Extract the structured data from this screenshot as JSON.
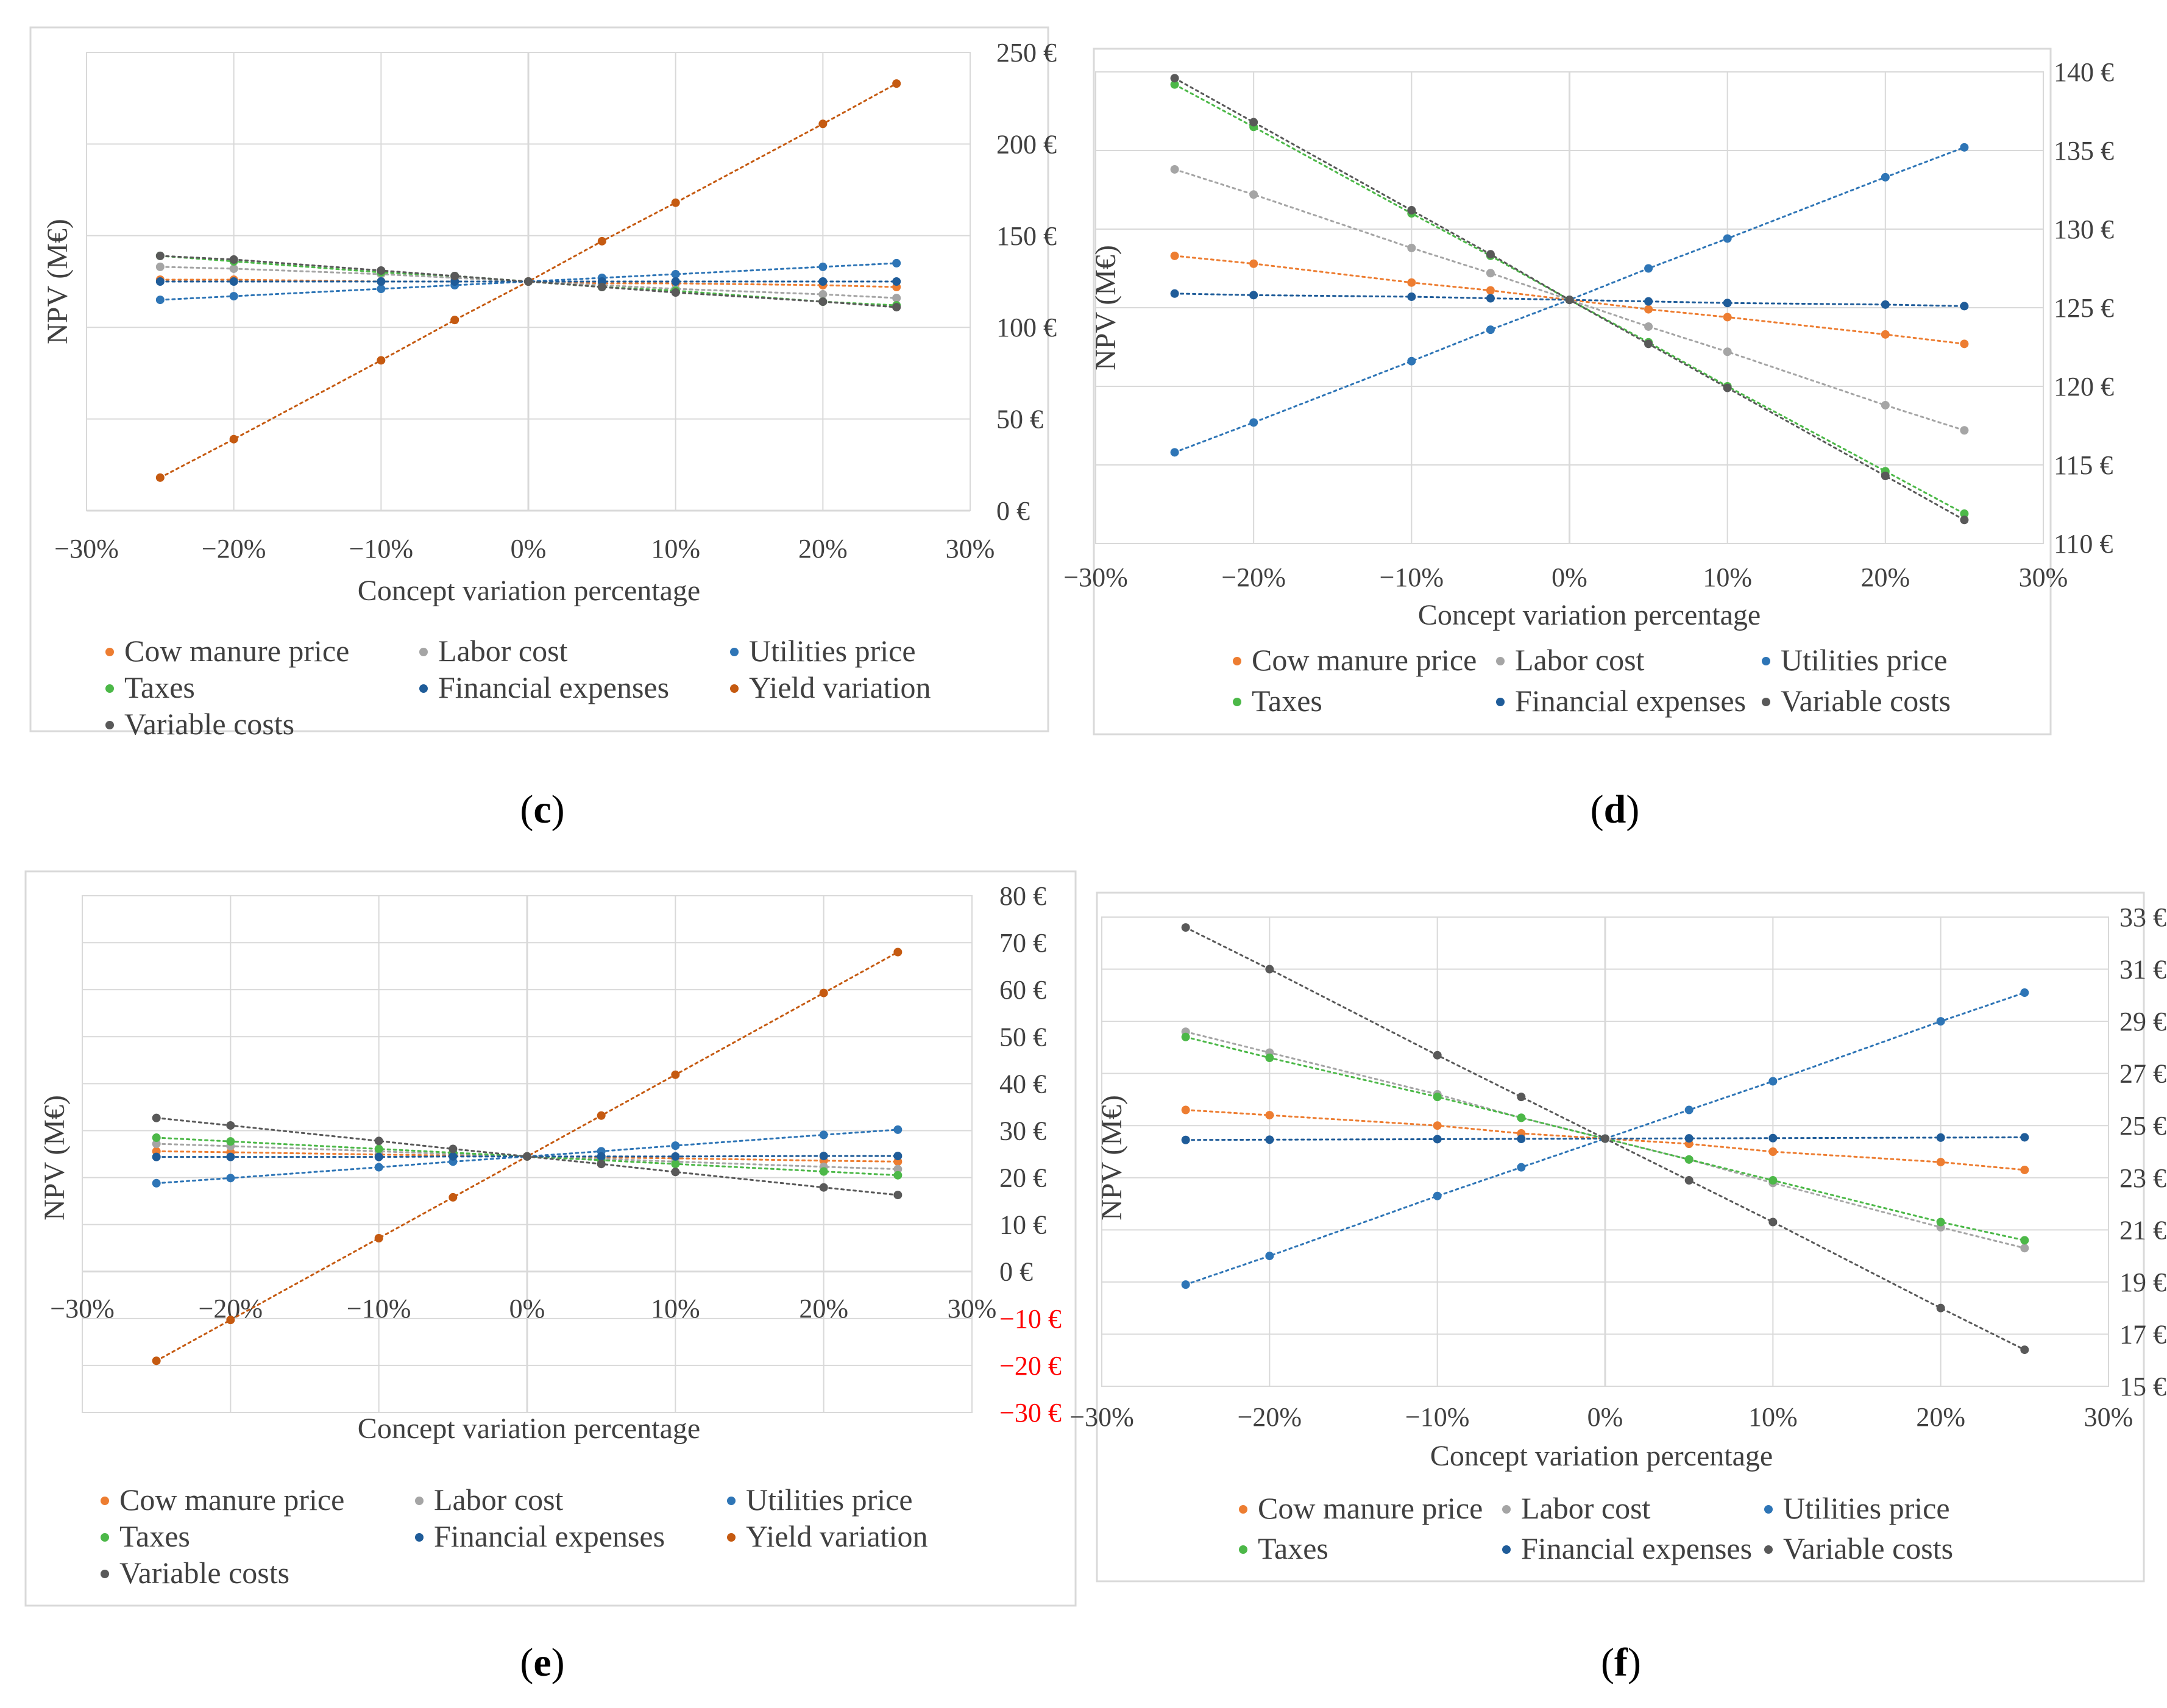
{
  "colors": {
    "cow_manure": "#ed7d31",
    "labor": "#a5a5a5",
    "utilities": "#2e75b6",
    "taxes": "#4cb848",
    "financial": "#1f5c99",
    "yield": "#c55a11",
    "variable": "#595959",
    "grid": "#d9d9d9",
    "frame": "#d9d9d9",
    "negative_label": "#ff0000"
  },
  "chart_data": [
    {
      "id": "c",
      "panel_label": "c",
      "type": "line",
      "ylabel": "NPV (M€)",
      "xlabel": "Concept variation percentage",
      "xlim": [
        -30,
        30
      ],
      "ylim": [
        0,
        250
      ],
      "x_ticks": [
        "−30%",
        "−20%",
        "−10%",
        "0%",
        "10%",
        "20%",
        "30%"
      ],
      "y_ticks": [
        "0 €",
        "50 €",
        "100 €",
        "150 €",
        "200 €",
        "250 €"
      ],
      "x": [
        -25,
        -20,
        -10,
        -5,
        0,
        5,
        10,
        20,
        25
      ],
      "series": [
        {
          "name": "Cow manure price",
          "color_key": "cow_manure",
          "values": [
            126,
            126,
            125,
            125,
            125,
            124,
            124,
            123,
            122
          ]
        },
        {
          "name": "Labor cost",
          "color_key": "labor",
          "values": [
            133,
            132,
            129,
            127,
            125,
            123,
            121,
            118,
            116
          ]
        },
        {
          "name": "Utilities price",
          "color_key": "utilities",
          "values": [
            115,
            117,
            121,
            123,
            125,
            127,
            129,
            133,
            135
          ]
        },
        {
          "name": "Taxes",
          "color_key": "taxes",
          "values": [
            139,
            136,
            130,
            128,
            125,
            122,
            120,
            114,
            112
          ]
        },
        {
          "name": "Financial expenses",
          "color_key": "financial",
          "values": [
            125,
            125,
            125,
            125,
            125,
            125,
            125,
            125,
            125
          ]
        },
        {
          "name": "Yield variation",
          "color_key": "yield",
          "values": [
            18,
            39,
            82,
            104,
            125,
            147,
            168,
            211,
            233
          ]
        },
        {
          "name": "Variable costs",
          "color_key": "variable",
          "values": [
            139,
            137,
            131,
            128,
            125,
            122,
            119,
            114,
            111
          ]
        }
      ]
    },
    {
      "id": "d",
      "panel_label": "d",
      "type": "line",
      "ylabel": "NPV (M€)",
      "xlabel": "Concept variation percentage",
      "xlim": [
        -30,
        30
      ],
      "ylim": [
        110,
        140
      ],
      "x_ticks": [
        "−30%",
        "−20%",
        "−10%",
        "0%",
        "10%",
        "20%",
        "30%"
      ],
      "y_ticks": [
        "110 €",
        "115 €",
        "120 €",
        "125 €",
        "130 €",
        "135 €",
        "140 €"
      ],
      "x": [
        -25,
        -20,
        -10,
        -5,
        0,
        5,
        10,
        20,
        25
      ],
      "series": [
        {
          "name": "Cow manure price",
          "color_key": "cow_manure",
          "values": [
            128.3,
            127.8,
            126.6,
            126.1,
            125.5,
            124.9,
            124.4,
            123.3,
            122.7
          ]
        },
        {
          "name": "Labor cost",
          "color_key": "labor",
          "values": [
            133.8,
            132.2,
            128.8,
            127.2,
            125.5,
            123.8,
            122.2,
            118.8,
            117.2
          ]
        },
        {
          "name": "Utilities price",
          "color_key": "utilities",
          "values": [
            115.8,
            117.7,
            121.6,
            123.6,
            125.5,
            127.5,
            129.4,
            133.3,
            135.2
          ]
        },
        {
          "name": "Taxes",
          "color_key": "taxes",
          "values": [
            139.2,
            136.5,
            131.0,
            128.3,
            125.5,
            122.8,
            120.0,
            114.6,
            111.9
          ]
        },
        {
          "name": "Financial expenses",
          "color_key": "financial",
          "values": [
            125.9,
            125.8,
            125.7,
            125.6,
            125.5,
            125.4,
            125.3,
            125.2,
            125.1
          ]
        },
        {
          "name": "Variable costs",
          "color_key": "variable",
          "values": [
            139.6,
            136.8,
            131.2,
            128.4,
            125.5,
            122.7,
            119.9,
            114.3,
            111.5
          ]
        }
      ]
    },
    {
      "id": "e",
      "panel_label": "e",
      "type": "line",
      "ylabel": "NPV (M€)",
      "xlabel": "Concept variation percentage",
      "xlim": [
        -30,
        30
      ],
      "ylim": [
        -30,
        80
      ],
      "x_ticks": [
        "−30%",
        "−20%",
        "−10%",
        "0%",
        "10%",
        "20%",
        "30%"
      ],
      "y_ticks": [
        "−30 €",
        "−20 €",
        "−10 €",
        "0 €",
        "10 €",
        "20 €",
        "30 €",
        "40 €",
        "50 €",
        "60 €",
        "70 €",
        "80 €"
      ],
      "x": [
        -25,
        -20,
        -10,
        -5,
        0,
        5,
        10,
        20,
        25
      ],
      "series": [
        {
          "name": "Cow manure price",
          "color_key": "cow_manure",
          "values": [
            25.6,
            25.4,
            24.9,
            24.7,
            24.5,
            24.3,
            24.1,
            23.6,
            23.4
          ]
        },
        {
          "name": "Labor cost",
          "color_key": "labor",
          "values": [
            27.2,
            26.7,
            25.6,
            25.0,
            24.5,
            24.0,
            23.4,
            22.3,
            21.8
          ]
        },
        {
          "name": "Utilities price",
          "color_key": "utilities",
          "values": [
            18.8,
            19.9,
            22.2,
            23.4,
            24.5,
            25.6,
            26.8,
            29.1,
            30.2
          ]
        },
        {
          "name": "Taxes",
          "color_key": "taxes",
          "values": [
            28.5,
            27.7,
            26.1,
            25.3,
            24.5,
            23.7,
            22.9,
            21.3,
            20.5
          ]
        },
        {
          "name": "Financial expenses",
          "color_key": "financial",
          "values": [
            24.4,
            24.4,
            24.4,
            24.5,
            24.5,
            24.5,
            24.5,
            24.6,
            24.6
          ]
        },
        {
          "name": "Yield variation",
          "color_key": "yield",
          "values": [
            -19,
            -10.3,
            7.1,
            15.8,
            24.5,
            33.2,
            41.9,
            59.3,
            68.0
          ]
        },
        {
          "name": "Variable costs",
          "color_key": "variable",
          "values": [
            32.7,
            31.1,
            27.8,
            26.1,
            24.5,
            22.9,
            21.2,
            17.9,
            16.3
          ]
        }
      ]
    },
    {
      "id": "f",
      "panel_label": "f",
      "type": "line",
      "ylabel": "NPV (M€)",
      "xlabel": "Concept variation percentage",
      "xlim": [
        -30,
        30
      ],
      "ylim": [
        15,
        33
      ],
      "x_ticks": [
        "−30%",
        "−20%",
        "−10%",
        "0%",
        "10%",
        "20%",
        "30%"
      ],
      "y_ticks": [
        "15 €",
        "17 €",
        "19 €",
        "21 €",
        "23 €",
        "25 €",
        "27 €",
        "29 €",
        "31 €",
        "33 €"
      ],
      "x": [
        -25,
        -20,
        -10,
        -5,
        0,
        5,
        10,
        20,
        25
      ],
      "series": [
        {
          "name": "Cow manure price",
          "color_key": "cow_manure",
          "values": [
            25.6,
            25.4,
            25.0,
            24.7,
            24.5,
            24.3,
            24.0,
            23.6,
            23.3
          ]
        },
        {
          "name": "Labor cost",
          "color_key": "labor",
          "values": [
            28.6,
            27.8,
            26.2,
            25.3,
            24.5,
            23.7,
            22.8,
            21.1,
            20.3
          ]
        },
        {
          "name": "Utilities price",
          "color_key": "utilities",
          "values": [
            18.9,
            20.0,
            22.3,
            23.4,
            24.5,
            25.6,
            26.7,
            29.0,
            30.1
          ]
        },
        {
          "name": "Taxes",
          "color_key": "taxes",
          "values": [
            28.4,
            27.6,
            26.1,
            25.3,
            24.5,
            23.7,
            22.9,
            21.3,
            20.6
          ]
        },
        {
          "name": "Financial expenses",
          "color_key": "financial",
          "values": [
            24.45,
            24.46,
            24.48,
            24.49,
            24.5,
            24.51,
            24.52,
            24.54,
            24.55
          ]
        },
        {
          "name": "Variable costs",
          "color_key": "variable",
          "values": [
            32.6,
            31.0,
            27.7,
            26.1,
            24.5,
            22.9,
            21.3,
            18.0,
            16.4
          ]
        }
      ]
    }
  ]
}
